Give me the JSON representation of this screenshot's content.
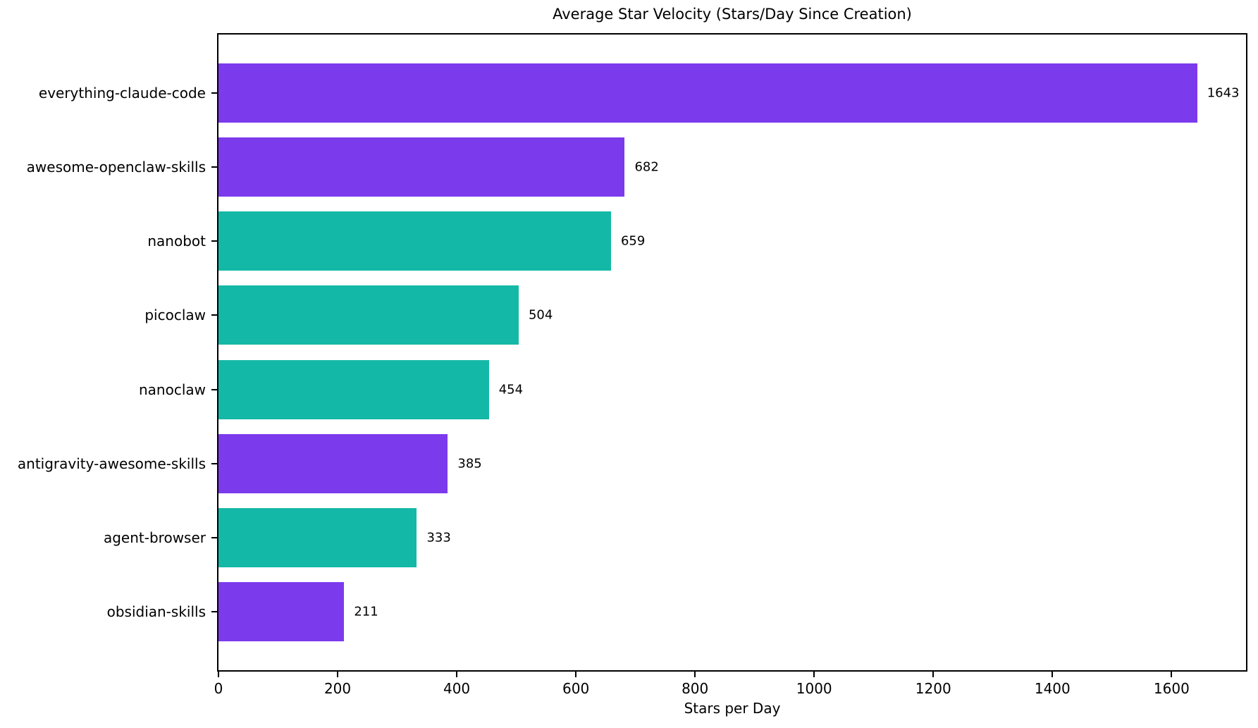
{
  "chart_data": {
    "type": "bar",
    "orientation": "horizontal",
    "title": "Average Star Velocity (Stars/Day Since Creation)",
    "xlabel": "Stars per Day",
    "ylabel": "",
    "categories": [
      "everything-claude-code",
      "awesome-openclaw-skills",
      "nanobot",
      "picoclaw",
      "nanoclaw",
      "antigravity-awesome-skills",
      "agent-browser",
      "obsidian-skills"
    ],
    "values": [
      1643,
      682,
      659,
      504,
      454,
      385,
      333,
      211
    ],
    "value_labels": [
      "1643",
      "682",
      "659",
      "504",
      "454",
      "385",
      "333",
      "211"
    ],
    "bar_colors": [
      "#7C3AED",
      "#7C3AED",
      "#14B8A6",
      "#14B8A6",
      "#14B8A6",
      "#7C3AED",
      "#14B8A6",
      "#7C3AED"
    ],
    "xlim": [
      0,
      1725
    ],
    "xticks": [
      0,
      200,
      400,
      600,
      800,
      1000,
      1200,
      1400,
      1600
    ],
    "xtick_labels": [
      "0",
      "200",
      "400",
      "600",
      "800",
      "1000",
      "1200",
      "1400",
      "1600"
    ],
    "grid": false,
    "legend": null,
    "colors": {
      "purple": "#7C3AED",
      "teal": "#14B8A6",
      "text": "#000000",
      "background": "#FFFFFF",
      "spine": "#000000"
    }
  }
}
